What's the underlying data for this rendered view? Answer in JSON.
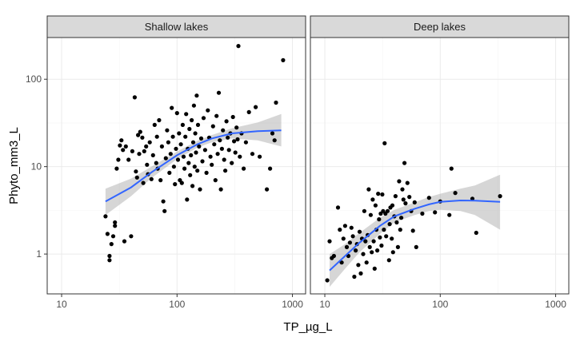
{
  "colors": {
    "panel_border": "#333333",
    "grid_major": "#ebebeb",
    "grid_minor": "#f5f5f5",
    "strip_fill": "#d9d9d9",
    "point": "#000000",
    "fit_line": "#3366ff",
    "ribbon": "#999999"
  },
  "chart_data": {
    "type": "scatter",
    "facet_layout": "1 row, 2 columns",
    "xlabel": "TP_µg_L",
    "ylabel": "Phyto_mm3_L",
    "x_scale": "log10",
    "y_scale": "log10",
    "xlim": [
      7.5,
      1300
    ],
    "ylim": [
      0.35,
      300
    ],
    "x_ticks": [
      10,
      100,
      1000
    ],
    "x_tick_labels": [
      "10",
      "100",
      "1000"
    ],
    "y_ticks": [
      1,
      10,
      100
    ],
    "y_tick_labels": [
      "1",
      "10",
      "100"
    ],
    "grid": true,
    "smoother": "loess fit with grey confidence band",
    "facets": [
      {
        "label": "Shallow lakes",
        "points": [
          [
            24,
            2.7
          ],
          [
            25,
            1.7
          ],
          [
            26,
            0.85
          ],
          [
            26,
            0.95
          ],
          [
            27,
            1.3
          ],
          [
            28,
            1.6
          ],
          [
            29,
            2.1
          ],
          [
            29,
            2.3
          ],
          [
            30,
            9.5
          ],
          [
            31,
            12
          ],
          [
            32,
            17.5
          ],
          [
            33,
            20
          ],
          [
            34,
            15.5
          ],
          [
            35,
            1.4
          ],
          [
            36,
            17
          ],
          [
            38,
            12
          ],
          [
            40,
            1.6
          ],
          [
            41,
            15
          ],
          [
            43,
            62
          ],
          [
            44,
            8.8
          ],
          [
            45,
            7.5
          ],
          [
            46,
            23
          ],
          [
            47,
            14
          ],
          [
            48,
            25
          ],
          [
            50,
            21.5
          ],
          [
            51,
            6.5
          ],
          [
            52,
            15
          ],
          [
            54,
            17
          ],
          [
            55,
            10.5
          ],
          [
            56,
            8.2
          ],
          [
            58,
            19
          ],
          [
            60,
            7.2
          ],
          [
            62,
            13.5
          ],
          [
            64,
            30
          ],
          [
            66,
            11
          ],
          [
            67,
            22
          ],
          [
            68,
            9.5
          ],
          [
            70,
            34
          ],
          [
            72,
            7
          ],
          [
            74,
            17
          ],
          [
            76,
            4
          ],
          [
            78,
            3.1
          ],
          [
            80,
            12.5
          ],
          [
            82,
            26
          ],
          [
            84,
            19
          ],
          [
            86,
            8.5
          ],
          [
            88,
            14
          ],
          [
            90,
            47
          ],
          [
            92,
            22
          ],
          [
            94,
            10
          ],
          [
            96,
            6.3
          ],
          [
            98,
            16
          ],
          [
            100,
            41
          ],
          [
            102,
            12
          ],
          [
            104,
            24
          ],
          [
            106,
            7
          ],
          [
            108,
            18
          ],
          [
            110,
            6.5
          ],
          [
            112,
            30
          ],
          [
            114,
            13
          ],
          [
            116,
            9.5
          ],
          [
            118,
            22
          ],
          [
            120,
            40
          ],
          [
            122,
            4.2
          ],
          [
            124,
            16
          ],
          [
            126,
            11
          ],
          [
            128,
            27
          ],
          [
            130,
            8
          ],
          [
            132,
            13.5
          ],
          [
            134,
            34
          ],
          [
            136,
            6
          ],
          [
            138,
            19
          ],
          [
            140,
            50
          ],
          [
            142,
            10
          ],
          [
            144,
            24
          ],
          [
            146,
            14.5
          ],
          [
            148,
            65
          ],
          [
            150,
            9
          ],
          [
            152,
            30
          ],
          [
            155,
            17
          ],
          [
            158,
            5.5
          ],
          [
            162,
            21
          ],
          [
            166,
            11.5
          ],
          [
            170,
            36
          ],
          [
            175,
            15.5
          ],
          [
            180,
            8.5
          ],
          [
            185,
            44
          ],
          [
            190,
            21.5
          ],
          [
            195,
            13
          ],
          [
            200,
            10.5
          ],
          [
            205,
            29
          ],
          [
            210,
            18
          ],
          [
            215,
            7
          ],
          [
            220,
            38
          ],
          [
            225,
            14
          ],
          [
            230,
            70
          ],
          [
            235,
            20
          ],
          [
            240,
            5.5
          ],
          [
            245,
            16
          ],
          [
            250,
            26
          ],
          [
            256,
            12
          ],
          [
            262,
            9
          ],
          [
            268,
            33
          ],
          [
            275,
            21.5
          ],
          [
            282,
            15.5
          ],
          [
            290,
            24
          ],
          [
            298,
            11
          ],
          [
            305,
            37
          ],
          [
            312,
            19.5
          ],
          [
            320,
            14.5
          ],
          [
            328,
            28
          ],
          [
            335,
            20.5
          ],
          [
            340,
            240
          ],
          [
            350,
            13
          ],
          [
            362,
            24
          ],
          [
            378,
            9.5
          ],
          [
            395,
            19
          ],
          [
            420,
            42
          ],
          [
            450,
            14
          ],
          [
            480,
            48
          ],
          [
            520,
            13
          ],
          [
            600,
            5.5
          ],
          [
            640,
            9.5
          ],
          [
            670,
            24
          ],
          [
            700,
            20
          ],
          [
            720,
            54
          ],
          [
            830,
            165
          ]
        ],
        "fit": [
          [
            24,
            4
          ],
          [
            40,
            5.8
          ],
          [
            60,
            8.6
          ],
          [
            100,
            13.5
          ],
          [
            150,
            18
          ],
          [
            200,
            21
          ],
          [
            300,
            24
          ],
          [
            500,
            25.5
          ],
          [
            800,
            26
          ]
        ],
        "band": [
          [
            24,
            2.8,
            5.6
          ],
          [
            40,
            4.6,
            7.3
          ],
          [
            60,
            7.4,
            10
          ],
          [
            100,
            12.2,
            14.9
          ],
          [
            150,
            16.5,
            19.8
          ],
          [
            200,
            19,
            23
          ],
          [
            300,
            21,
            27.5
          ],
          [
            500,
            20,
            32
          ],
          [
            800,
            17,
            40
          ]
        ]
      },
      {
        "label": "Deep lakes",
        "points": [
          [
            10.5,
            0.5
          ],
          [
            11,
            1.4
          ],
          [
            11.5,
            0.9
          ],
          [
            12,
            0.95
          ],
          [
            13,
            3.4
          ],
          [
            13.5,
            1.9
          ],
          [
            14,
            0.8
          ],
          [
            14.5,
            1.5
          ],
          [
            15,
            2.1
          ],
          [
            15.5,
            1.2
          ],
          [
            16,
            0.95
          ],
          [
            16.5,
            1.35
          ],
          [
            17,
            2
          ],
          [
            17.5,
            1.6
          ],
          [
            18,
            0.55
          ],
          [
            18.5,
            1.1
          ],
          [
            19,
            1.3
          ],
          [
            19.5,
            0.75
          ],
          [
            20,
            1.8
          ],
          [
            20.5,
            0.6
          ],
          [
            21,
            1.5
          ],
          [
            21.5,
            1
          ],
          [
            22,
            3.1
          ],
          [
            22.5,
            1.4
          ],
          [
            23,
            0.8
          ],
          [
            23.5,
            1.65
          ],
          [
            24,
            5.5
          ],
          [
            24.5,
            1.2
          ],
          [
            25,
            2.8
          ],
          [
            25.5,
            1.05
          ],
          [
            26,
            4.2
          ],
          [
            26.5,
            1.4
          ],
          [
            27,
            0.68
          ],
          [
            27.5,
            3.6
          ],
          [
            28,
            1.9
          ],
          [
            28.5,
            1.1
          ],
          [
            29,
            4.9
          ],
          [
            29.5,
            2.5
          ],
          [
            30,
            1.55
          ],
          [
            30.5,
            2.9
          ],
          [
            31,
            1.25
          ],
          [
            31.5,
            4.8
          ],
          [
            32,
            3.1
          ],
          [
            32.5,
            1.9
          ],
          [
            33,
            18.5
          ],
          [
            33.5,
            2.9
          ],
          [
            34,
            1.6
          ],
          [
            35,
            3.1
          ],
          [
            36,
            0.85
          ],
          [
            36.5,
            2.2
          ],
          [
            37,
            3.4
          ],
          [
            38,
            1.5
          ],
          [
            38.5,
            3.6
          ],
          [
            39,
            1.05
          ],
          [
            40,
            2.7
          ],
          [
            41,
            4.6
          ],
          [
            42,
            2.3
          ],
          [
            43,
            1.2
          ],
          [
            44,
            6.8
          ],
          [
            45,
            1.9
          ],
          [
            46,
            2.6
          ],
          [
            47,
            5.5
          ],
          [
            48,
            4.2
          ],
          [
            49,
            11
          ],
          [
            50,
            3.8
          ],
          [
            52,
            6.5
          ],
          [
            54,
            4.5
          ],
          [
            56,
            3.1
          ],
          [
            58,
            1.85
          ],
          [
            60,
            3.9
          ],
          [
            62,
            1.2
          ],
          [
            70,
            2.9
          ],
          [
            80,
            4.4
          ],
          [
            90,
            3
          ],
          [
            100,
            4
          ],
          [
            120,
            2.8
          ],
          [
            125,
            9.5
          ],
          [
            135,
            5
          ],
          [
            190,
            4.3
          ],
          [
            205,
            1.75
          ],
          [
            330,
            4.6
          ]
        ],
        "fit": [
          [
            11,
            0.65
          ],
          [
            15,
            0.95
          ],
          [
            20,
            1.35
          ],
          [
            30,
            2.1
          ],
          [
            40,
            2.7
          ],
          [
            60,
            3.3
          ],
          [
            80,
            3.7
          ],
          [
            100,
            3.95
          ],
          [
            150,
            4.1
          ],
          [
            200,
            4.08
          ],
          [
            330,
            3.95
          ]
        ],
        "band": [
          [
            11,
            0.42,
            1
          ],
          [
            15,
            0.68,
            1.3
          ],
          [
            20,
            1.05,
            1.75
          ],
          [
            30,
            1.7,
            2.6
          ],
          [
            40,
            2.3,
            3.2
          ],
          [
            60,
            2.8,
            3.9
          ],
          [
            80,
            3.1,
            4.5
          ],
          [
            100,
            3.2,
            4.9
          ],
          [
            150,
            3.1,
            5.6
          ],
          [
            200,
            2.8,
            6.1
          ],
          [
            330,
            1.9,
            8.1
          ]
        ]
      }
    ]
  }
}
